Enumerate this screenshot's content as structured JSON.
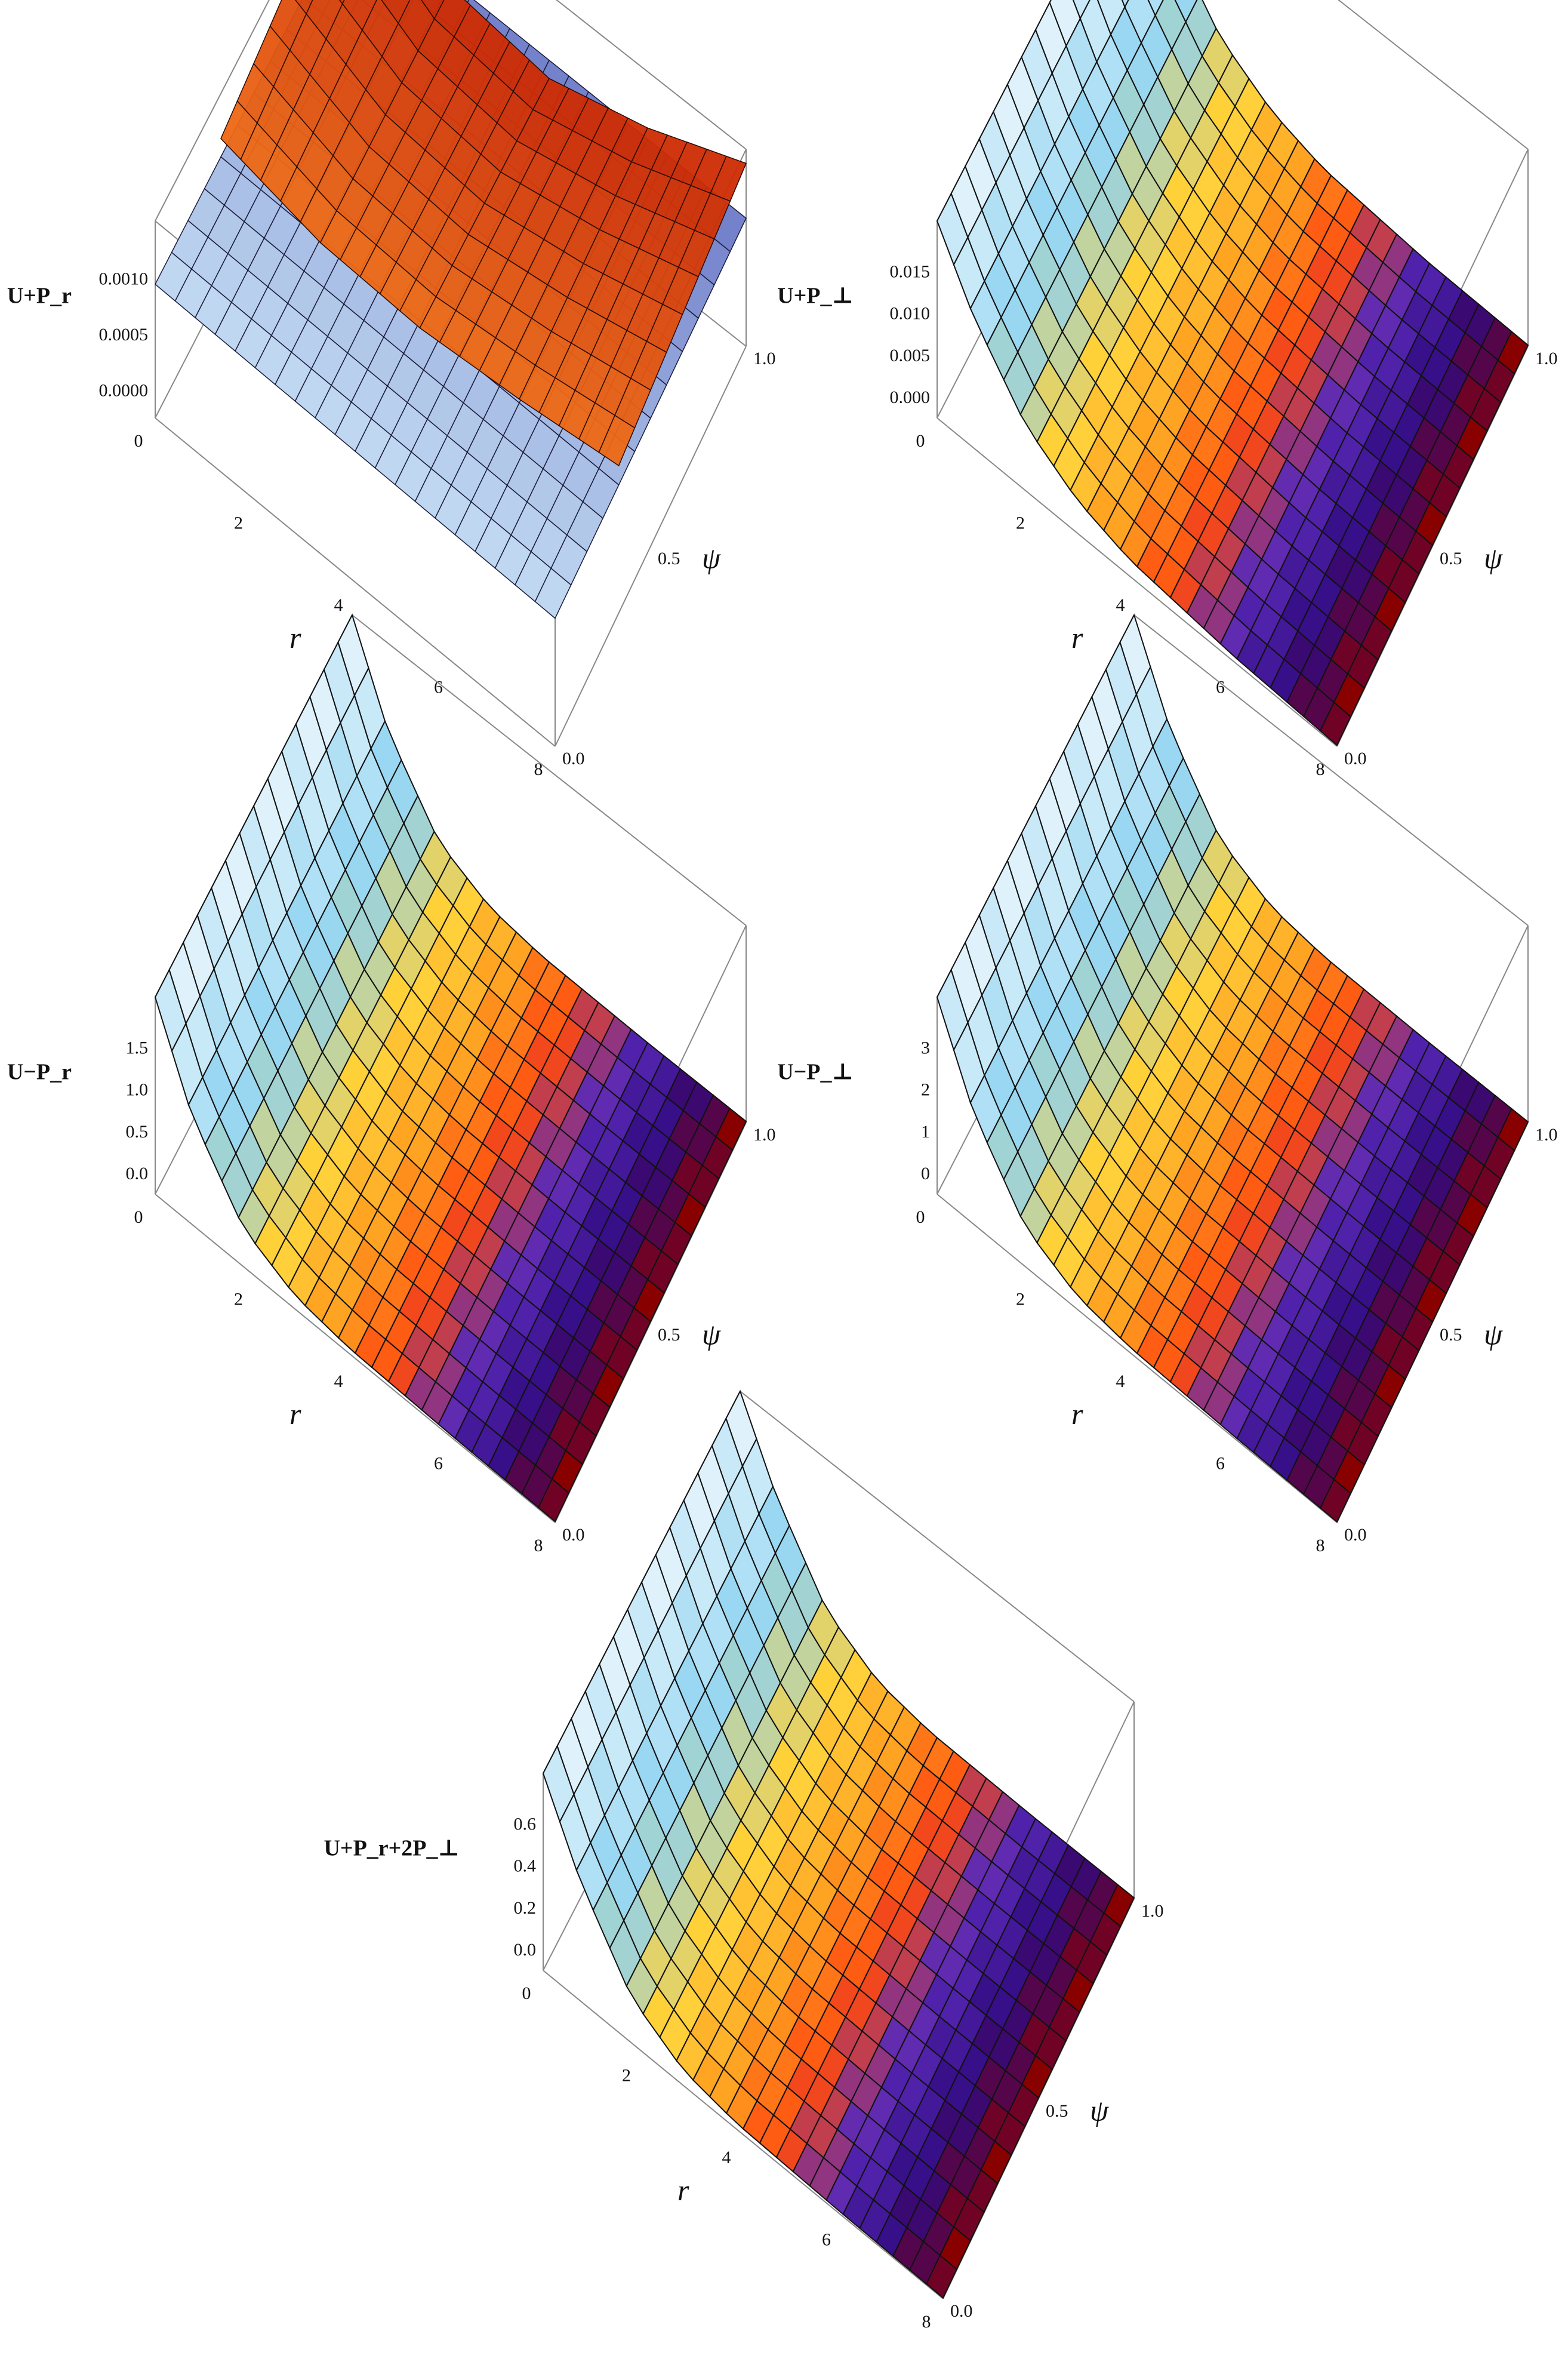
{
  "chart_data": [
    {
      "type": "surface",
      "zlabel": "U+P_r",
      "xlabel": "r",
      "ylabel": "ψ",
      "x_ticks": [
        "0",
        "2",
        "4",
        "6",
        "8"
      ],
      "y_ticks": [
        "0.0",
        "0.5",
        "1.0"
      ],
      "z_ticks": [
        "0.0000",
        "0.0005",
        "0.0010"
      ],
      "xlim": [
        0,
        8
      ],
      "ylim": [
        0,
        1
      ],
      "zlim": [
        -0.0002,
        0.0012
      ],
      "surfaces": [
        {
          "name": "",
          "shape": "flat",
          "r": [
            0,
            2,
            4,
            6,
            8
          ],
          "z_at_psi0": [
            0.00075,
            0.00074,
            0.00073,
            0.00072,
            0.00071
          ],
          "colors": [
            "#cfeaf8",
            "#2a2fa8"
          ]
        },
        {
          "name": "",
          "shape": "parabola",
          "r": [
            0,
            2,
            4,
            6,
            8
          ],
          "z_at_psi1": [
            0.0012,
            0.0007,
            0.0006,
            0.0008,
            0.0011
          ],
          "colors": [
            "#ff8a1e",
            "#c82200"
          ]
        }
      ]
    },
    {
      "type": "surface",
      "zlabel": "U+P_⊥",
      "xlabel": "r",
      "ylabel": "ψ",
      "x_ticks": [
        "0",
        "2",
        "4",
        "6",
        "8"
      ],
      "y_ticks": [
        "0.0",
        "0.5",
        "1.0"
      ],
      "z_ticks": [
        "0.000",
        "0.005",
        "0.010",
        "0.015"
      ],
      "xlim": [
        0,
        8
      ],
      "ylim": [
        0,
        1
      ],
      "zlim": [
        0,
        0.018
      ],
      "r": [
        0.3,
        1,
        2,
        3,
        4,
        6,
        8
      ],
      "z": [
        0.018,
        0.012,
        0.006,
        0.003,
        0.0015,
        0.0005,
        0.0001
      ]
    },
    {
      "type": "surface",
      "zlabel": "U−P_r",
      "xlabel": "r",
      "ylabel": "ψ",
      "x_ticks": [
        "0",
        "2",
        "4",
        "6",
        "8"
      ],
      "y_ticks": [
        "0.0",
        "0.5",
        "1.0"
      ],
      "z_ticks": [
        "0.0",
        "0.5",
        "1.0",
        "1.5"
      ],
      "xlim": [
        0,
        8
      ],
      "ylim": [
        0,
        1
      ],
      "zlim": [
        0,
        1.8
      ],
      "r": [
        0.3,
        1,
        2,
        3,
        4,
        6,
        8
      ],
      "z": [
        1.8,
        1.0,
        0.35,
        0.12,
        0.05,
        0.02,
        0.01
      ]
    },
    {
      "type": "surface",
      "zlabel": "U−P_⊥",
      "xlabel": "r",
      "ylabel": "ψ",
      "x_ticks": [
        "0",
        "2",
        "4",
        "6",
        "8"
      ],
      "y_ticks": [
        "0.0",
        "0.5",
        "1.0"
      ],
      "z_ticks": [
        "0",
        "1",
        "2",
        "3"
      ],
      "xlim": [
        0,
        8
      ],
      "ylim": [
        0,
        1
      ],
      "zlim": [
        0,
        3
      ],
      "r": [
        0.3,
        1,
        2,
        3,
        4,
        6,
        8
      ],
      "z": [
        3.0,
        1.7,
        0.6,
        0.2,
        0.08,
        0.03,
        0.01
      ]
    },
    {
      "type": "surface",
      "zlabel": "U+P_r+2P_⊥",
      "xlabel": "r",
      "ylabel": "ψ",
      "x_ticks": [
        "0",
        "2",
        "4",
        "6",
        "8"
      ],
      "y_ticks": [
        "0.0",
        "0.5",
        "1.0"
      ],
      "z_ticks": [
        "0.0",
        "0.2",
        "0.4",
        "0.6"
      ],
      "xlim": [
        0,
        8
      ],
      "ylim": [
        0,
        1
      ],
      "zlim": [
        0,
        0.65
      ],
      "r": [
        0.3,
        1,
        2,
        3,
        4,
        6,
        8
      ],
      "z": [
        0.65,
        0.4,
        0.15,
        0.05,
        0.02,
        0.008,
        0.003
      ]
    }
  ],
  "colors": {
    "panel1_flat": "#8fc6ee",
    "panel1_parabola": "#ff6a10",
    "decay_surface": [
      "#dff2fb",
      "#8fd3f0",
      "#ffd23a",
      "#ffa020",
      "#ff4a10",
      "#5a2ab8",
      "#300a80",
      "#8a0000"
    ]
  }
}
